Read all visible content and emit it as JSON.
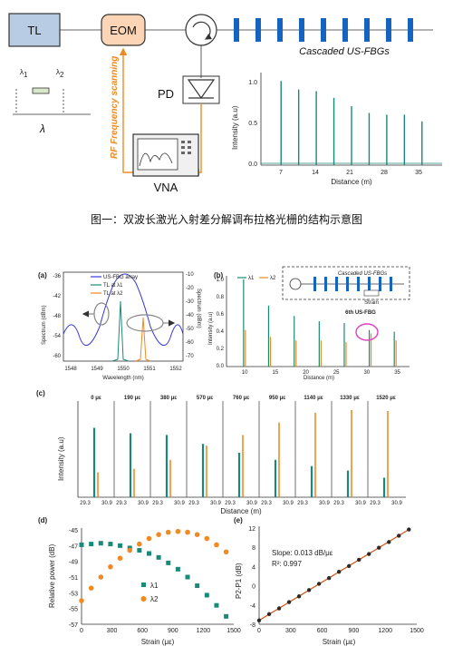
{
  "colors": {
    "teal": "#1a8a78",
    "orange": "#f08a24",
    "blue": "#1565c0",
    "box_fill": "#b8cce4",
    "eom_fill": "#fbd5b5",
    "pd_line": "#333333",
    "magenta": "#e040c0",
    "dark": "#2a2a2a",
    "fit": "#d05010"
  },
  "schematic": {
    "tl": "TL",
    "eom": "EOM",
    "fbg_caption": "Cascaded US-FBGs",
    "lambda1": "λ",
    "lambda1_sub": "1",
    "lambda2": "λ",
    "lambda2_sub": "2",
    "lambda": "λ",
    "rf_label": "RF Frequency scanning",
    "pd": "PD",
    "vna": "VNA",
    "inset": {
      "ylabel": "Intensity (a.u)",
      "xlabel": "Distance (m)",
      "yticks": [
        "0.0",
        "0.5",
        "1.0"
      ],
      "xticks": [
        "7",
        "14",
        "21",
        "28",
        "35"
      ]
    }
  },
  "caption": "图一：双波长激光入射差分解调布拉格光栅的结构示意图",
  "panel_a": {
    "tag": "(a)",
    "legend": [
      "US-FBG array",
      "TL at λ1",
      "TL at λ2"
    ],
    "ylabel_left": "Spectrum (dBm)",
    "ylabel_right": "Spectrum (dBm)",
    "xlabel": "Wavelength (nm)",
    "yticks_left": [
      "-36",
      "-42",
      "-48",
      "-54",
      "-60"
    ],
    "yticks_right": [
      "-10",
      "-20",
      "-30",
      "-40",
      "-50",
      "-60",
      "-70"
    ],
    "xticks": [
      "1548",
      "1549",
      "1550",
      "1551",
      "1552"
    ]
  },
  "panel_b": {
    "tag": "(b)",
    "legend": [
      "λ1",
      "λ2"
    ],
    "ylabel": "Intensity (a.u)",
    "xlabel": "Distance (m)",
    "yticks": [
      "1.0",
      "0.8",
      "0.6",
      "0.4",
      "0.2",
      "0.0"
    ],
    "xticks": [
      "10",
      "15",
      "20",
      "25",
      "30",
      "35"
    ],
    "inset_caption": "Cascaded US-FBGs",
    "strain": "Strain",
    "annot": "6th US-FBG"
  },
  "panel_c": {
    "tag": "(c)",
    "ylabel": "Intensity (a.u)",
    "xlabel": "Distance (m)",
    "strains": [
      "0 με",
      "190 με",
      "380 με",
      "570 με",
      "760 με",
      "950 με",
      "1140 με",
      "1330 με",
      "1520 με"
    ],
    "xtick_lo": "29.3",
    "xtick_hi": "30.9"
  },
  "panel_d": {
    "tag": "(d)",
    "ylabel": "Relative power (dB)",
    "xlabel": "Strain (με)",
    "yticks": [
      "-45",
      "-47",
      "-49",
      "-51",
      "-53",
      "-55",
      "-57"
    ],
    "xticks": [
      "0",
      "300",
      "600",
      "900",
      "1200",
      "1500"
    ],
    "legend": [
      "λ1",
      "λ2"
    ]
  },
  "panel_e": {
    "tag": "(e)",
    "ylabel": "P2-P1 (dB)",
    "xlabel": "Strain (με)",
    "slope": "Slope: 0.013 dB/με",
    "r2": "R²: 0.997",
    "yticks": [
      "12",
      "8",
      "4",
      "0",
      "-4",
      "-8"
    ],
    "xticks": [
      "0",
      "300",
      "600",
      "900",
      "1200",
      "1500"
    ]
  },
  "chart_data": [
    {
      "type": "bar",
      "title": "",
      "xlabel": "Distance (m)",
      "ylabel": "Intensity (a.u)",
      "categories": [
        "7",
        "10.5",
        "14",
        "17.5",
        "21",
        "24.5",
        "28",
        "31.5",
        "35"
      ],
      "values": [
        1.0,
        0.9,
        0.88,
        0.8,
        0.7,
        0.62,
        0.6,
        0.6,
        0.52
      ],
      "ylim": [
        0,
        1.1
      ]
    },
    {
      "type": "scatter",
      "title": "",
      "xlabel": "Strain (με)",
      "ylabel": "Relative power (dB)",
      "series": [
        {
          "name": "λ1",
          "x": [
            0,
            95,
            190,
            285,
            380,
            475,
            570,
            665,
            760,
            855,
            950,
            1045,
            1140,
            1235,
            1330,
            1425
          ],
          "y": [
            -46.9,
            -46.8,
            -46.7,
            -46.8,
            -47.0,
            -47.3,
            -47.6,
            -48.0,
            -48.5,
            -49.2,
            -50.0,
            -51.0,
            -52.1,
            -53.3,
            -54.6,
            -56.0
          ]
        },
        {
          "name": "λ2",
          "x": [
            0,
            95,
            190,
            285,
            380,
            475,
            570,
            665,
            760,
            855,
            950,
            1045,
            1140,
            1235,
            1330,
            1425
          ],
          "y": [
            -54.0,
            -52.4,
            -51.0,
            -49.7,
            -48.6,
            -47.6,
            -46.8,
            -46.1,
            -45.6,
            -45.3,
            -45.2,
            -45.3,
            -45.6,
            -46.1,
            -46.9,
            -47.8
          ]
        }
      ],
      "xlim": [
        0,
        1500
      ],
      "ylim": [
        -57,
        -45
      ]
    },
    {
      "type": "scatter",
      "title": "",
      "xlabel": "Strain (με)",
      "ylabel": "P2-P1 (dB)",
      "series": [
        {
          "name": "",
          "x": [
            0,
            95,
            190,
            285,
            380,
            475,
            570,
            665,
            760,
            855,
            950,
            1045,
            1140,
            1235,
            1330,
            1425
          ],
          "y": [
            -7.2,
            -5.9,
            -4.7,
            -3.4,
            -2.2,
            -0.9,
            0.4,
            1.6,
            2.9,
            4.1,
            5.4,
            6.6,
            7.9,
            9.1,
            10.4,
            11.7
          ]
        }
      ],
      "xlim": [
        0,
        1500
      ],
      "ylim": [
        -8,
        12
      ]
    }
  ]
}
